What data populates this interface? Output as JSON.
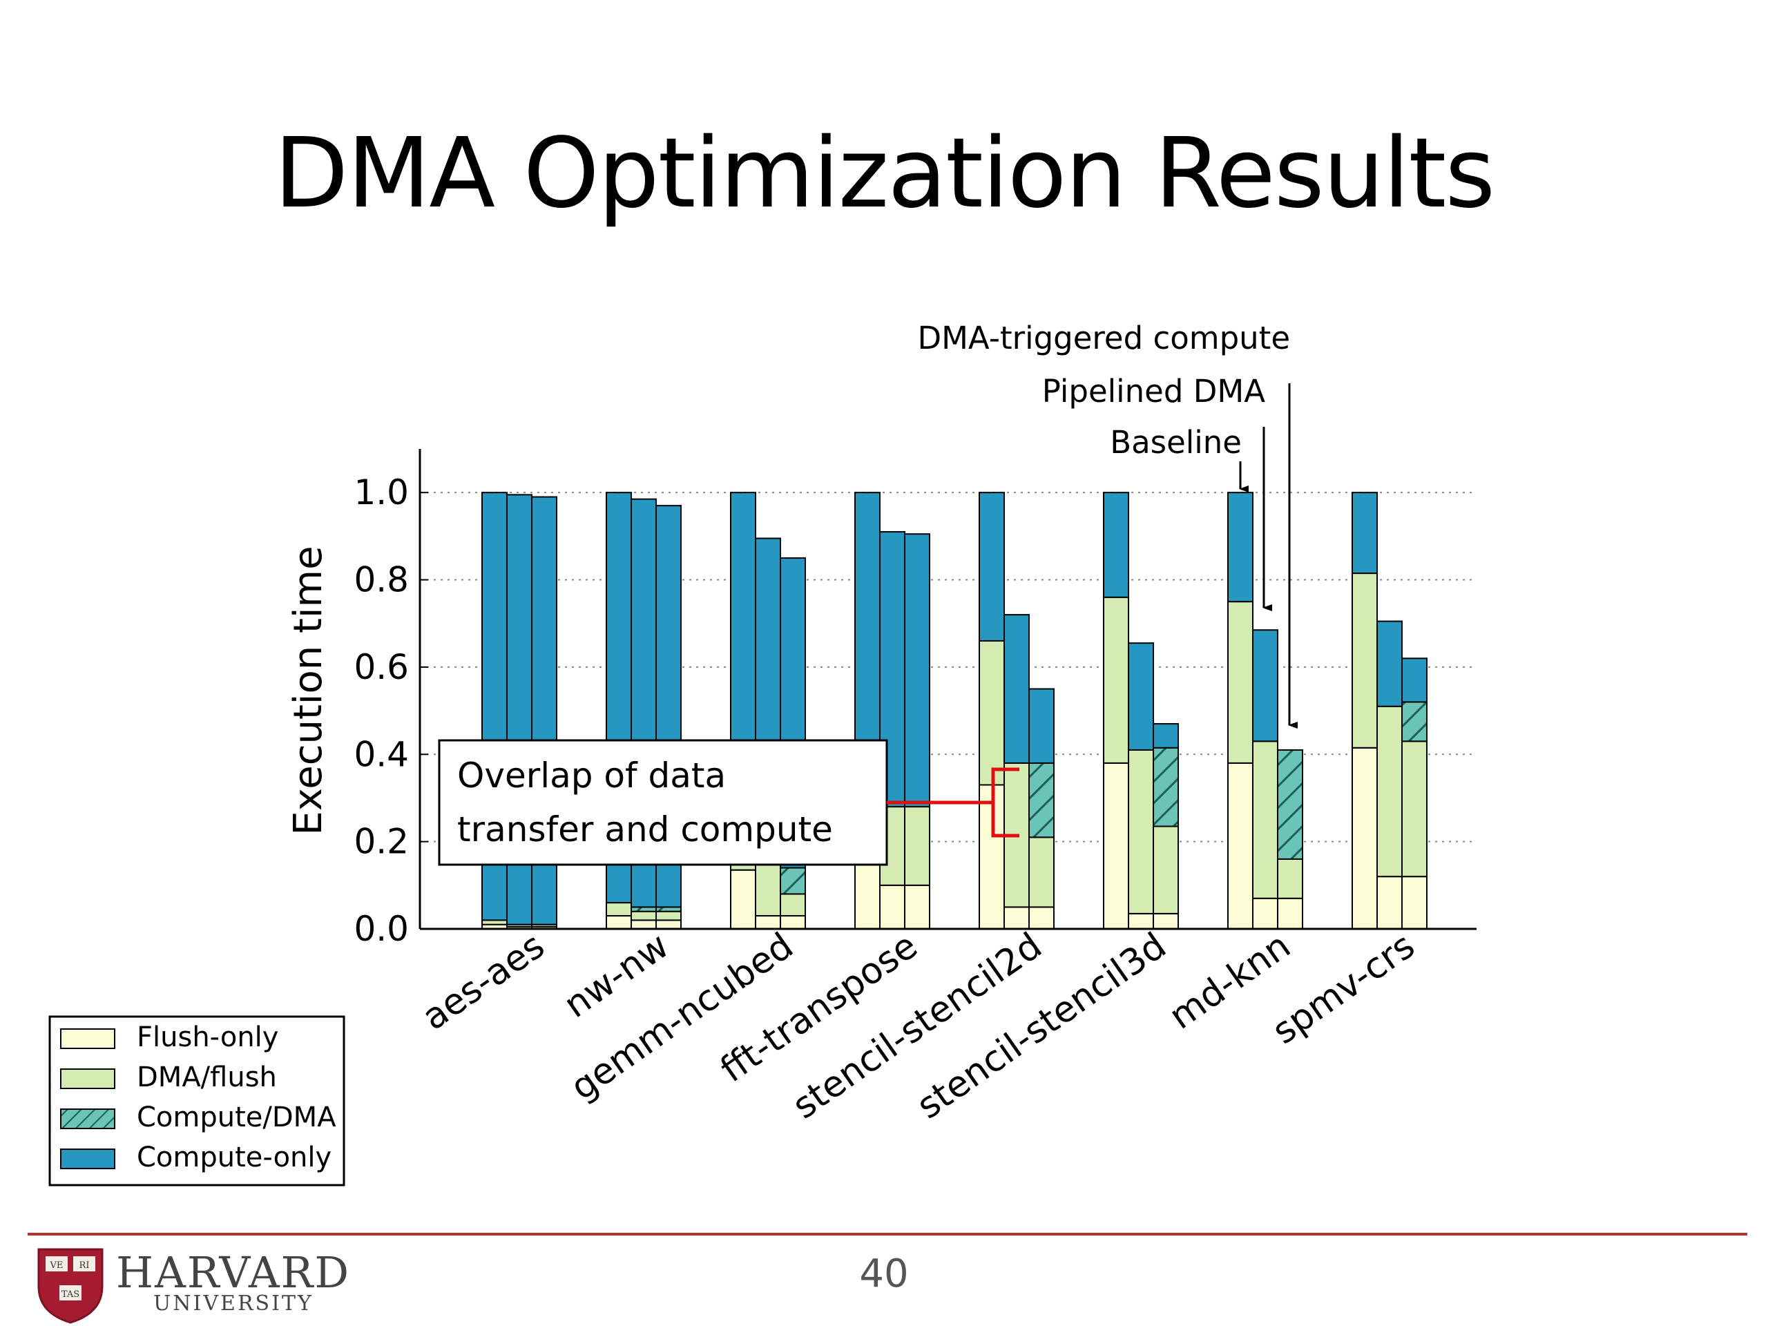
{
  "slide": {
    "title": "DMA Optimization Results",
    "page_number": "40",
    "logo_text": "HARVARD",
    "logo_subtext": "UNIVERSITY",
    "logo_shield_text": [
      "VE",
      "RI",
      "TAS"
    ]
  },
  "chart_data": {
    "type": "bar",
    "stacked": true,
    "title": "",
    "xlabel": "",
    "ylabel": "Execution time",
    "ylim": [
      0,
      1.1
    ],
    "yticks": [
      "0.0",
      "0.2",
      "0.4",
      "0.6",
      "0.8",
      "1.0"
    ],
    "grid": "horizontal dotted",
    "categories": [
      "aes-aes",
      "nw-nw",
      "gemm-ncubed",
      "fft-transpose",
      "stencil-stencil2d",
      "stencil-stencil3d",
      "md-knn",
      "spmv-crs"
    ],
    "bars_per_category": [
      "Baseline",
      "Pipelined DMA",
      "DMA-triggered compute"
    ],
    "layers": [
      "Flush-only",
      "DMA/flush",
      "Compute/DMA",
      "Compute-only"
    ],
    "legend_position": "bottom-left",
    "colors": {
      "Flush-only": "#fdfdd5",
      "DMA/flush": "#d4ebb2",
      "Compute/DMA": "#6ac5b6",
      "Compute-only": "#2597c0"
    },
    "data": [
      [
        [
          0.01,
          0.01,
          0.0,
          0.98
        ],
        [
          0.005,
          0.005,
          0.0,
          0.985
        ],
        [
          0.005,
          0.005,
          0.0,
          0.98
        ]
      ],
      [
        [
          0.03,
          0.03,
          0.0,
          0.94
        ],
        [
          0.02,
          0.02,
          0.01,
          0.935
        ],
        [
          0.02,
          0.02,
          0.01,
          0.92
        ]
      ],
      [
        [
          0.135,
          0.02,
          0.0,
          0.845
        ],
        [
          0.03,
          0.12,
          0.0,
          0.745
        ],
        [
          0.03,
          0.05,
          0.06,
          0.71
        ]
      ],
      [
        [
          0.15,
          0.13,
          0.0,
          0.72
        ],
        [
          0.1,
          0.18,
          0.0,
          0.63
        ],
        [
          0.1,
          0.18,
          0.0,
          0.625
        ]
      ],
      [
        [
          0.33,
          0.33,
          0.0,
          0.34
        ],
        [
          0.05,
          0.33,
          0.0,
          0.34
        ],
        [
          0.05,
          0.16,
          0.17,
          0.17
        ]
      ],
      [
        [
          0.38,
          0.38,
          0.0,
          0.24
        ],
        [
          0.035,
          0.375,
          0.0,
          0.245
        ],
        [
          0.035,
          0.2,
          0.18,
          0.055
        ]
      ],
      [
        [
          0.38,
          0.37,
          0.0,
          0.25
        ],
        [
          0.07,
          0.36,
          0.0,
          0.255
        ],
        [
          0.07,
          0.09,
          0.25,
          0.0
        ]
      ],
      [
        [
          0.415,
          0.4,
          0.0,
          0.185
        ],
        [
          0.12,
          0.39,
          0.0,
          0.195
        ],
        [
          0.12,
          0.31,
          0.09,
          0.1
        ]
      ]
    ],
    "annotations": [
      "DMA-triggered compute",
      "Pipelined DMA",
      "Baseline",
      "Overlap of data",
      "transfer and compute"
    ]
  }
}
